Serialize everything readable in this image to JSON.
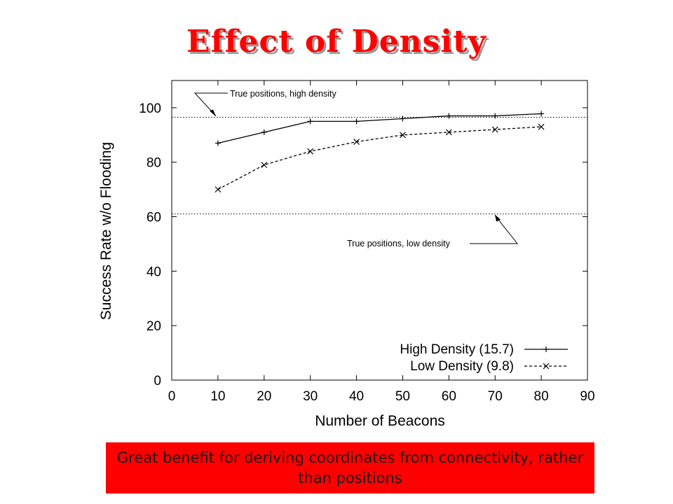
{
  "slide": {
    "title": "Effect of Density",
    "caption": "Great benefit for deriving coordinates from connectivity, rather than positions"
  },
  "colors": {
    "title": "#ff0000",
    "caption_background": "#ff0000",
    "plot_lines": "#000000"
  },
  "chart_data": {
    "type": "line",
    "title": "",
    "xlabel": "Number of Beacons",
    "ylabel": "Success Rate w/o Flooding",
    "xlim": [
      0,
      90
    ],
    "ylim": [
      0,
      110
    ],
    "xticks": [
      "0",
      "10",
      "20",
      "30",
      "40",
      "50",
      "60",
      "70",
      "80",
      "90"
    ],
    "yticks": [
      "0",
      "20",
      "40",
      "60",
      "80",
      "100"
    ],
    "grid": false,
    "legend_position": "bottom-right",
    "series": [
      {
        "name": "High Density (15.7)",
        "style": "solid",
        "marker": "plus",
        "x": [
          10,
          20,
          30,
          40,
          50,
          60,
          70,
          80
        ],
        "y": [
          87,
          91,
          95,
          95,
          96,
          97,
          97,
          97.8
        ]
      },
      {
        "name": "Low Density (9.8)",
        "style": "dashed",
        "marker": "cross",
        "x": [
          10,
          20,
          30,
          40,
          50,
          60,
          70,
          80
        ],
        "y": [
          70,
          79,
          84,
          87.5,
          90,
          91,
          92,
          93
        ]
      }
    ],
    "reference_lines": [
      {
        "label": "True positions, high density",
        "y": 96.5,
        "style": "dotted"
      },
      {
        "label": "True positions, low density",
        "y": 61,
        "style": "dotted"
      }
    ]
  }
}
